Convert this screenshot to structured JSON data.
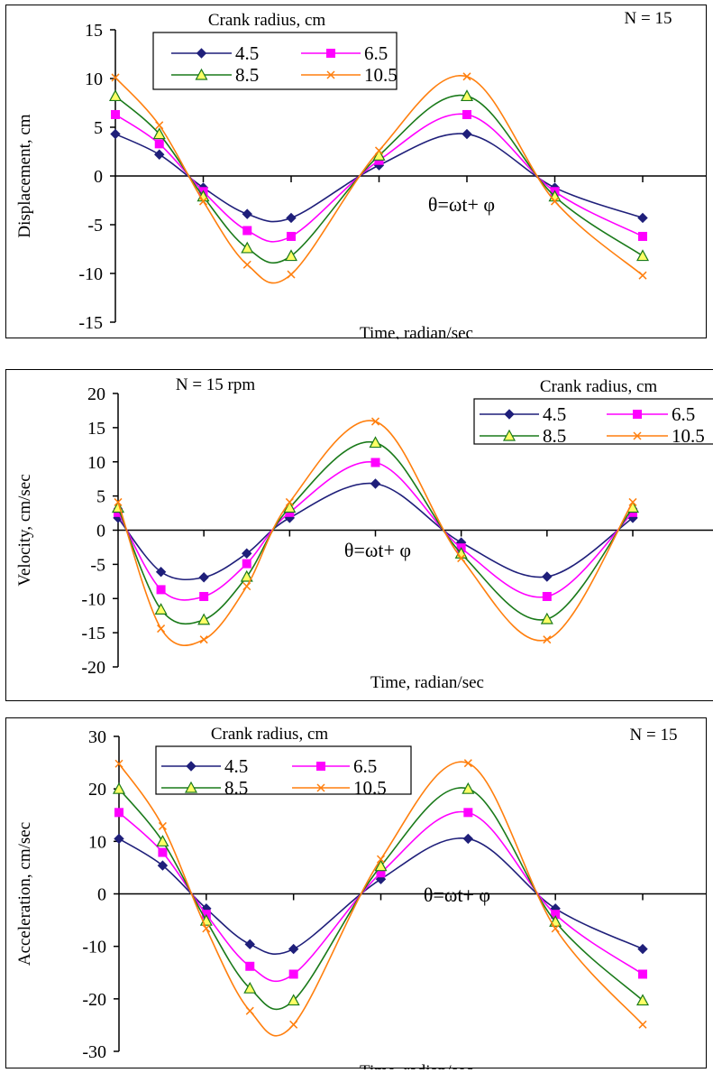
{
  "chart_data": [
    {
      "type": "line",
      "title": "",
      "annotation_n": "N = 15",
      "formula": "θ=ωt+ φ",
      "xlabel": "Time, radian/sec",
      "ylabel": "Displacement, cm",
      "ylim": [
        -15,
        15
      ],
      "yticks": [
        -15,
        -10,
        -5,
        0,
        5,
        10,
        15
      ],
      "legend_title": "Crank radius, cm",
      "legend_position": "top-left",
      "grid": false,
      "x": [
        0,
        1,
        2,
        3,
        4,
        5,
        6,
        7,
        8,
        9,
        10,
        11,
        12
      ],
      "series": [
        {
          "name": "4.5",
          "color": "#1f1f7a",
          "marker": "diamond",
          "values": [
            4.3,
            2.2,
            -1.2,
            -3.9,
            -4.3,
            null,
            1.1,
            null,
            4.3,
            null,
            -1.2,
            null,
            -4.3
          ]
        },
        {
          "name": "6.5",
          "color": "#ff00ff",
          "marker": "square",
          "values": [
            6.3,
            3.3,
            -1.6,
            -5.6,
            -6.2,
            null,
            1.6,
            null,
            6.3,
            null,
            -1.6,
            null,
            -6.2
          ]
        },
        {
          "name": "8.5",
          "color": "#1a7a1a",
          "marker": "triangle",
          "values": [
            8.2,
            4.3,
            -2.1,
            -7.4,
            -8.2,
            null,
            2.1,
            null,
            8.2,
            null,
            -2.1,
            null,
            -8.2
          ]
        },
        {
          "name": "10.5",
          "color": "#ff7f0e",
          "marker": "x",
          "values": [
            10.1,
            5.2,
            -2.6,
            -9.1,
            -10.1,
            null,
            2.6,
            null,
            10.2,
            null,
            -2.6,
            null,
            -10.2
          ]
        }
      ]
    },
    {
      "type": "line",
      "title": "",
      "annotation_n": "N = 15 rpm",
      "formula": "θ=ωt+ φ",
      "xlabel": "Time, radian/sec",
      "ylabel": "Velocity, cm/sec",
      "ylim": [
        -20,
        20
      ],
      "yticks": [
        -20,
        -15,
        -10,
        -5,
        0,
        5,
        10,
        15,
        20
      ],
      "legend_title": "Crank radius, cm",
      "legend_position": "top-right",
      "grid": false,
      "x": [
        0,
        1,
        2,
        3,
        4,
        5,
        6,
        7,
        8,
        9,
        10,
        11,
        12
      ],
      "series": [
        {
          "name": "4.5",
          "color": "#1f1f7a",
          "marker": "diamond",
          "values": [
            1.8,
            -6.1,
            -6.9,
            -3.4,
            1.8,
            null,
            6.8,
            null,
            -1.8,
            null,
            -6.8,
            null,
            1.8
          ]
        },
        {
          "name": "6.5",
          "color": "#ff00ff",
          "marker": "square",
          "values": [
            2.6,
            -8.7,
            -9.7,
            -4.9,
            2.6,
            null,
            9.9,
            null,
            -2.6,
            null,
            -9.7,
            null,
            2.6
          ]
        },
        {
          "name": "8.5",
          "color": "#1a7a1a",
          "marker": "triangle",
          "values": [
            3.3,
            -11.6,
            -13.1,
            -6.8,
            3.3,
            null,
            12.8,
            null,
            -3.4,
            null,
            -13.0,
            null,
            3.3
          ]
        },
        {
          "name": "10.5",
          "color": "#ff7f0e",
          "marker": "x",
          "values": [
            4.1,
            -14.4,
            -16.0,
            -8.2,
            4.1,
            null,
            15.9,
            null,
            -4.1,
            null,
            -16.0,
            null,
            4.1
          ]
        }
      ]
    },
    {
      "type": "line",
      "title": "",
      "annotation_n": "N = 15",
      "formula": "θ=ωt+ φ",
      "xlabel": "Time, radian/sec",
      "ylabel": "Acceleration, cm/sec",
      "ylim": [
        -30,
        30
      ],
      "yticks": [
        -30,
        -20,
        -10,
        0,
        10,
        20,
        30
      ],
      "legend_title": "Crank radius, cm",
      "legend_position": "top-left",
      "grid": false,
      "x": [
        0,
        1,
        2,
        3,
        4,
        5,
        6,
        7,
        8,
        9,
        10,
        11,
        12
      ],
      "series": [
        {
          "name": "4.5",
          "color": "#1f1f7a",
          "marker": "diamond",
          "values": [
            10.5,
            5.4,
            -2.8,
            -9.6,
            -10.5,
            null,
            2.8,
            null,
            10.5,
            null,
            -2.8,
            null,
            -10.5
          ]
        },
        {
          "name": "6.5",
          "color": "#ff00ff",
          "marker": "square",
          "values": [
            15.5,
            7.9,
            -3.9,
            -13.8,
            -15.3,
            null,
            4.0,
            null,
            15.5,
            null,
            -3.9,
            null,
            -15.3
          ]
        },
        {
          "name": "8.5",
          "color": "#1a7a1a",
          "marker": "triangle",
          "values": [
            20.0,
            10.0,
            -5.1,
            -18.0,
            -20.3,
            null,
            5.3,
            null,
            20.0,
            null,
            -5.3,
            null,
            -20.3
          ]
        },
        {
          "name": "10.5",
          "color": "#ff7f0e",
          "marker": "x",
          "values": [
            24.8,
            12.9,
            -6.6,
            -22.3,
            -24.9,
            null,
            6.6,
            null,
            24.9,
            null,
            -6.6,
            null,
            -24.9
          ]
        }
      ]
    }
  ]
}
